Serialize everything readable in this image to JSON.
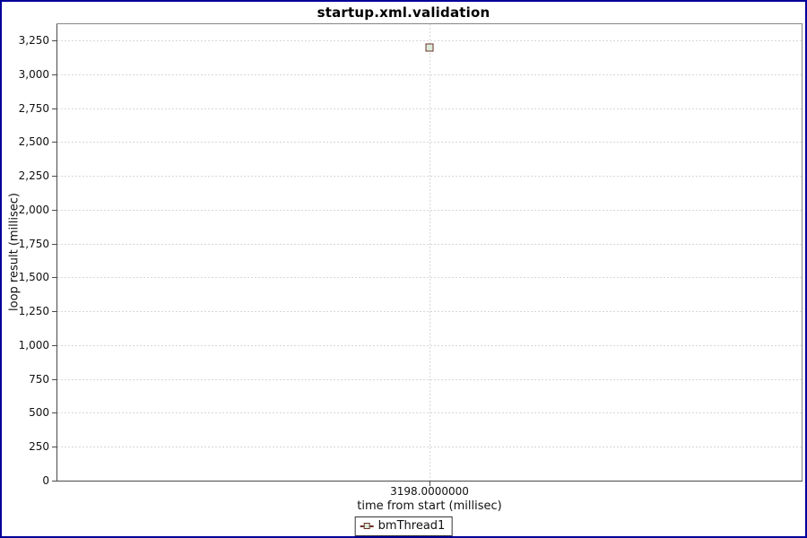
{
  "window": {
    "border_color": "#000099",
    "background": "#ffffff"
  },
  "colors": {
    "grid": "#d7d7d7",
    "plot_border": "#858585",
    "axis": "#4a4a4a",
    "text": "#000000"
  },
  "chart_data": {
    "type": "scatter",
    "title": "startup.xml.validation",
    "xlabel": "time from start (millisec)",
    "ylabel": "loop result (millisec)",
    "grid": true,
    "legend_position": "bottom",
    "ylim": [
      0,
      3370
    ],
    "y_ticks": [
      0,
      250,
      500,
      750,
      1000,
      1250,
      1500,
      1750,
      2000,
      2250,
      2500,
      2750,
      3000,
      3250
    ],
    "x_tick_labels": [
      "3198.0000000"
    ],
    "series": [
      {
        "name": "bmThread1",
        "marker": "square",
        "marker_fill": "#dcead9",
        "marker_stroke": "#6b302a",
        "points": [
          {
            "x": 3198,
            "y": 3198
          }
        ]
      }
    ]
  }
}
